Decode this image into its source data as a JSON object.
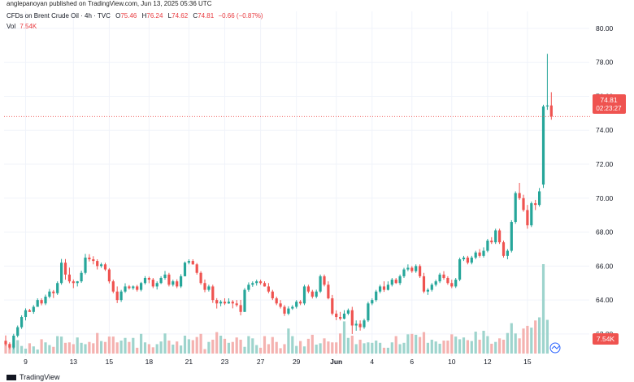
{
  "publisher": "anglepanoyan published on TradingView.com, Jun 13, 2025 05:36 UTC",
  "legend": {
    "symbol": "CFDs on Brent Crude Oil · 4h · TVC",
    "o_label": "O",
    "o_value": "75.46",
    "h_label": "H",
    "h_value": "76.24",
    "l_label": "L",
    "l_value": "74.62",
    "c_label": "C",
    "c_value": "74.81",
    "change": "−0.66 (−0.87%)",
    "vol_label": "Vol",
    "vol_value": "7.54K"
  },
  "price_tag": {
    "price": "74.81",
    "countdown": "02:23:27"
  },
  "volume_tag": "7.54K",
  "brand": "TradingView",
  "colors": {
    "up": "#26a69a",
    "down": "#ef5350",
    "up_vol": "#9ed4cd",
    "down_vol": "#f4b2b0",
    "grid": "#f0f3fa",
    "text": "#131722"
  },
  "chart_data": {
    "type": "candlestick",
    "title": "CFDs on Brent Crude Oil · 4h · TVC",
    "ylim": [
      60.8,
      81.0
    ],
    "y_ticks": [
      "62.00",
      "64.00",
      "66.00",
      "68.00",
      "70.00",
      "72.00",
      "74.00",
      "76.00",
      "78.00",
      "80.00"
    ],
    "x_tick_labels": [
      "9",
      "13",
      "15",
      "18",
      "21",
      "23",
      "27",
      "29",
      "Jun",
      "4",
      "6",
      "10",
      "12",
      "15"
    ],
    "x_tick_bars": [
      5,
      17,
      26,
      36,
      46,
      55,
      64,
      73,
      83,
      92,
      102,
      112,
      121,
      131
    ],
    "candles": [
      [
        61.6,
        61.91,
        61.3,
        61.4
      ],
      [
        61.4,
        61.51,
        61.1,
        61.2
      ],
      [
        61.2,
        62.01,
        61.1,
        61.9
      ],
      [
        61.9,
        62.5,
        61.8,
        62.4
      ],
      [
        62.4,
        63.1,
        62.3,
        63.0
      ],
      [
        63.0,
        63.51,
        62.8,
        63.4
      ],
      [
        63.4,
        63.48,
        63.3,
        63.3
      ],
      [
        63.3,
        63.7,
        63.19,
        63.6
      ],
      [
        63.6,
        64.1,
        63.6,
        64.0
      ],
      [
        64.0,
        64.1,
        63.69,
        63.8
      ],
      [
        63.8,
        64.32,
        63.7,
        64.2
      ],
      [
        64.2,
        64.65,
        64.1,
        64.5
      ],
      [
        64.5,
        64.59,
        64.12,
        64.4
      ],
      [
        64.4,
        65.1,
        64.3,
        65.0
      ],
      [
        65.0,
        66.42,
        64.9,
        66.2
      ],
      [
        66.2,
        66.41,
        65.2,
        65.5
      ],
      [
        65.5,
        65.91,
        64.99,
        65.1
      ],
      [
        65.1,
        65.21,
        64.7,
        65.0
      ],
      [
        65.0,
        65.12,
        64.8,
        65.1
      ],
      [
        65.1,
        65.73,
        65.01,
        65.6
      ],
      [
        65.6,
        66.72,
        65.51,
        66.5
      ],
      [
        66.5,
        66.7,
        66.27,
        66.4
      ],
      [
        66.4,
        66.58,
        66.1,
        66.3
      ],
      [
        66.3,
        66.4,
        65.8,
        66.0
      ],
      [
        66.0,
        66.2,
        65.9,
        66.1
      ],
      [
        66.1,
        66.2,
        65.71,
        65.8
      ],
      [
        65.8,
        65.88,
        64.98,
        65.1
      ],
      [
        65.1,
        65.2,
        64.4,
        64.5
      ],
      [
        64.5,
        64.8,
        63.82,
        64.0
      ],
      [
        64.0,
        64.6,
        63.89,
        64.5
      ],
      [
        64.5,
        64.99,
        64.42,
        64.8
      ],
      [
        64.8,
        64.88,
        64.62,
        64.7
      ],
      [
        64.7,
        64.86,
        64.6,
        64.8
      ],
      [
        64.8,
        64.89,
        64.5,
        64.6
      ],
      [
        64.6,
        65.07,
        64.51,
        65.0
      ],
      [
        65.0,
        65.41,
        64.91,
        65.3
      ],
      [
        65.3,
        65.38,
        64.99,
        65.2
      ],
      [
        65.2,
        65.3,
        64.7,
        64.8
      ],
      [
        64.8,
        65.1,
        64.62,
        65.0
      ],
      [
        65.0,
        65.4,
        64.94,
        65.3
      ],
      [
        65.3,
        65.71,
        65.2,
        65.5
      ],
      [
        65.5,
        65.6,
        64.8,
        64.9
      ],
      [
        64.9,
        65.2,
        64.8,
        65.1
      ],
      [
        65.1,
        65.22,
        64.7,
        64.8
      ],
      [
        64.8,
        65.52,
        64.71,
        65.4
      ],
      [
        65.4,
        66.27,
        65.4,
        66.2
      ],
      [
        66.2,
        66.4,
        66.1,
        66.3
      ],
      [
        66.3,
        66.4,
        66.08,
        66.1
      ],
      [
        66.1,
        66.18,
        65.5,
        65.6
      ],
      [
        65.6,
        65.7,
        64.9,
        65.0
      ],
      [
        65.0,
        65.21,
        64.46,
        64.6
      ],
      [
        64.6,
        64.9,
        64.5,
        64.8
      ],
      [
        64.8,
        64.9,
        63.83,
        64.0
      ],
      [
        64.0,
        64.11,
        63.5,
        63.8
      ],
      [
        63.8,
        64.0,
        63.63,
        63.9
      ],
      [
        63.9,
        64.1,
        63.71,
        63.8
      ],
      [
        63.8,
        64.1,
        63.78,
        63.9
      ],
      [
        63.9,
        64.0,
        63.51,
        63.8
      ],
      [
        63.8,
        64.0,
        63.6,
        63.7
      ],
      [
        63.7,
        64.01,
        63.1,
        63.3
      ],
      [
        63.3,
        64.7,
        63.3,
        64.6
      ],
      [
        64.6,
        65.04,
        64.49,
        64.9
      ],
      [
        64.9,
        65.1,
        64.78,
        65.0
      ],
      [
        65.0,
        65.2,
        64.85,
        65.1
      ],
      [
        65.1,
        65.2,
        64.9,
        65.0
      ],
      [
        65.0,
        65.1,
        64.79,
        64.8
      ],
      [
        64.8,
        65.0,
        64.4,
        64.5
      ],
      [
        64.5,
        64.6,
        64.0,
        64.1
      ],
      [
        64.1,
        64.2,
        63.7,
        63.8
      ],
      [
        63.8,
        64.0,
        63.5,
        63.6
      ],
      [
        63.6,
        63.7,
        63.06,
        63.2
      ],
      [
        63.2,
        63.63,
        63.11,
        63.5
      ],
      [
        63.5,
        63.7,
        63.42,
        63.6
      ],
      [
        63.6,
        64.0,
        63.5,
        63.9
      ],
      [
        63.9,
        64.0,
        63.7,
        63.8
      ],
      [
        63.8,
        64.9,
        63.7,
        64.8
      ],
      [
        64.8,
        64.9,
        64.4,
        64.5
      ],
      [
        64.5,
        64.6,
        64.09,
        64.2
      ],
      [
        64.2,
        64.61,
        64.1,
        64.5
      ],
      [
        64.5,
        65.5,
        64.42,
        65.4
      ],
      [
        65.4,
        65.5,
        64.8,
        64.9
      ],
      [
        64.9,
        65.1,
        64.04,
        64.1
      ],
      [
        64.1,
        64.3,
        63.1,
        63.2
      ],
      [
        63.2,
        63.39,
        62.81,
        63.0
      ],
      [
        63.0,
        63.3,
        62.8,
        62.9
      ],
      [
        62.9,
        63.4,
        62.86,
        63.2
      ],
      [
        63.2,
        63.5,
        63.11,
        63.4
      ],
      [
        63.4,
        63.6,
        62.0,
        62.5
      ],
      [
        62.5,
        62.8,
        62.19,
        62.6
      ],
      [
        62.6,
        62.8,
        62.2,
        62.4
      ],
      [
        62.4,
        62.9,
        62.3,
        62.8
      ],
      [
        62.8,
        63.9,
        62.71,
        63.8
      ],
      [
        63.8,
        64.1,
        63.7,
        64.0
      ],
      [
        64.0,
        64.6,
        63.9,
        64.5
      ],
      [
        64.5,
        64.9,
        64.4,
        64.8
      ],
      [
        64.8,
        65.1,
        64.48,
        64.6
      ],
      [
        64.6,
        65.1,
        64.56,
        64.9
      ],
      [
        64.9,
        65.3,
        64.8,
        65.2
      ],
      [
        65.2,
        65.3,
        64.95,
        65.0
      ],
      [
        65.0,
        65.5,
        64.88,
        65.4
      ],
      [
        65.4,
        65.9,
        65.3,
        65.8
      ],
      [
        65.8,
        66.1,
        65.7,
        65.9
      ],
      [
        65.9,
        66.0,
        65.6,
        65.7
      ],
      [
        65.7,
        66.1,
        65.6,
        66.0
      ],
      [
        66.0,
        66.1,
        65.3,
        65.4
      ],
      [
        65.4,
        65.6,
        64.4,
        64.5
      ],
      [
        64.5,
        64.7,
        64.3,
        64.6
      ],
      [
        64.6,
        65.0,
        64.5,
        64.9
      ],
      [
        64.9,
        65.2,
        64.8,
        65.1
      ],
      [
        65.1,
        65.6,
        65.0,
        65.5
      ],
      [
        65.5,
        65.7,
        65.2,
        65.3
      ],
      [
        65.3,
        65.4,
        64.9,
        65.0
      ],
      [
        65.0,
        65.2,
        64.7,
        64.8
      ],
      [
        64.8,
        65.3,
        64.71,
        65.2
      ],
      [
        65.2,
        66.5,
        65.11,
        66.4
      ],
      [
        66.4,
        66.6,
        66.3,
        66.5
      ],
      [
        66.5,
        66.6,
        66.1,
        66.2
      ],
      [
        66.2,
        66.6,
        66.1,
        66.5
      ],
      [
        66.5,
        66.9,
        66.4,
        66.8
      ],
      [
        66.8,
        67.0,
        66.5,
        66.6
      ],
      [
        66.6,
        67.1,
        66.5,
        66.9
      ],
      [
        66.9,
        67.6,
        66.81,
        67.5
      ],
      [
        67.5,
        67.7,
        67.3,
        67.4
      ],
      [
        67.4,
        68.2,
        67.3,
        68.1
      ],
      [
        68.1,
        68.2,
        67.3,
        67.4
      ],
      [
        67.4,
        67.5,
        66.5,
        66.6
      ],
      [
        66.6,
        67.0,
        66.4,
        66.9
      ],
      [
        66.9,
        68.7,
        66.8,
        68.6
      ],
      [
        68.6,
        70.4,
        68.49,
        70.3
      ],
      [
        70.3,
        70.9,
        69.9,
        70.0
      ],
      [
        70.0,
        70.2,
        69.2,
        69.3
      ],
      [
        69.3,
        69.6,
        68.2,
        68.4
      ],
      [
        68.4,
        69.8,
        68.3,
        69.7
      ],
      [
        69.7,
        69.9,
        69.3,
        69.6
      ],
      [
        69.6,
        70.6,
        69.5,
        70.4
      ],
      [
        70.8,
        75.5,
        70.6,
        75.4
      ],
      [
        75.4,
        78.5,
        75.2,
        75.46
      ],
      [
        75.46,
        76.24,
        74.62,
        74.81
      ]
    ],
    "volumes": [
      2.2,
      2.2,
      2.3,
      3.0,
      1.7,
      1.1,
      2.3,
      1.6,
      0.9,
      3.2,
      2.5,
      1.9,
      1.5,
      3.9,
      3.8,
      2.4,
      2.5,
      2.1,
      3.6,
      2.4,
      2.1,
      2.6,
      2.3,
      4.6,
      2.8,
      2.6,
      3.8,
      3.8,
      2.5,
      2.9,
      3.5,
      2.6,
      3.5,
      1.3,
      4.4,
      2.5,
      2.1,
      1.4,
      2.1,
      2.7,
      4.5,
      2.9,
      2.0,
      2.7,
      1.8,
      4.0,
      3.2,
      3.0,
      3.7,
      4.4,
      1.0,
      2.6,
      3.1,
      4.8,
      4.0,
      3.3,
      2.4,
      2.6,
      3.6,
      3.1,
      1.5,
      3.9,
      3.4,
      1.9,
      1.3,
      3.9,
      2.1,
      3.7,
      2.6,
      1.2,
      2.1,
      5.6,
      3.9,
      1.7,
      2.8,
      1.6,
      3.3,
      4.2,
      2.0,
      2.3,
      3.4,
      2.7,
      2.5,
      2.5,
      4.5,
      7.2,
      3.5,
      4.0,
      2.1,
      3.1,
      2.3,
      2.5,
      2.4,
      2.9,
      2.4,
      1.3,
      1.3,
      2.5,
      3.9,
      2.1,
      2.4,
      4.3,
      4.4,
      4.2,
      3.7,
      4.8,
      2.4,
      3.1,
      2.7,
      2.2,
      2.9,
      2.9,
      4.3,
      3.8,
      3.2,
      3.6,
      3.0,
      2.8,
      4.9,
      3.1,
      5.1,
      3.9,
      2.2,
      2.6,
      3.4,
      3.1,
      4.6,
      6.8,
      4.5,
      3.4,
      5.6,
      6.2,
      5.8,
      7.4,
      8.1,
      20.0,
      7.54
    ]
  }
}
